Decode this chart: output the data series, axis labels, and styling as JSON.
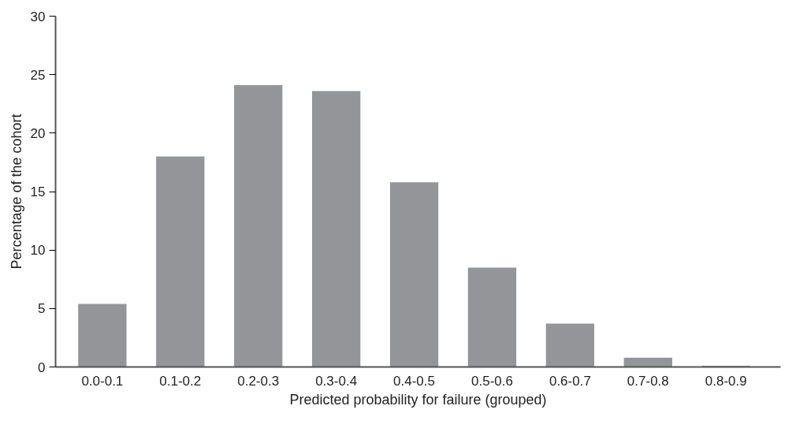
{
  "chart_data": {
    "type": "bar",
    "xlabel": "Predicted probability for failure (grouped)",
    "ylabel": "Percentage of the cohort",
    "categories": [
      "0.0-0.1",
      "0.1-0.2",
      "0.2-0.3",
      "0.3-0.4",
      "0.4-0.5",
      "0.5-0.6",
      "0.6-0.7",
      "0.7-0.8",
      "0.8-0.9"
    ],
    "values": [
      5.4,
      18.0,
      24.1,
      23.6,
      15.8,
      8.5,
      3.7,
      0.8,
      0.1
    ],
    "color": "#939598",
    "ylim": [
      0,
      30
    ],
    "yticks": [
      0,
      5,
      10,
      15,
      20,
      25,
      30
    ],
    "grid": false
  }
}
